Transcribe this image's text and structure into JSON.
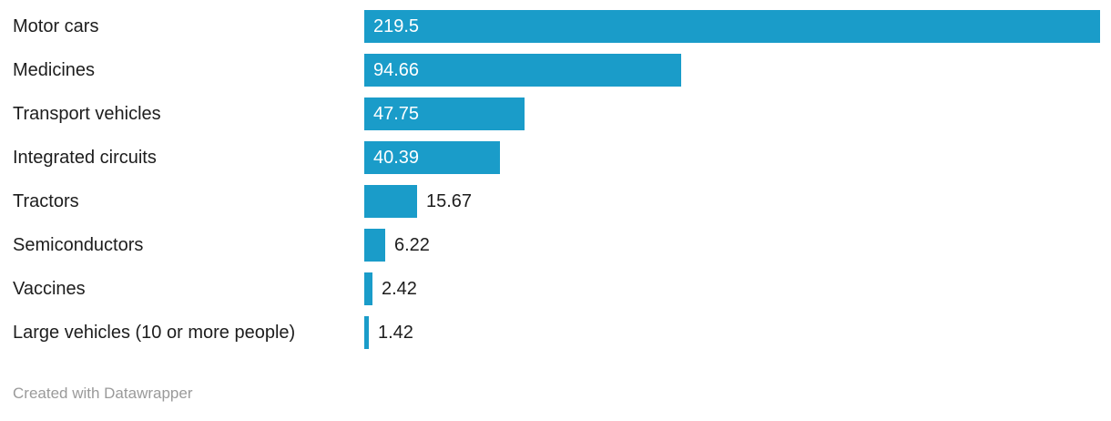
{
  "chart_data": {
    "type": "bar",
    "orientation": "horizontal",
    "title": "",
    "xlabel": "",
    "ylabel": "",
    "xlim": [
      0,
      219.5
    ],
    "grid": false,
    "legend": "none",
    "bar_color": "#1a9cc9",
    "categories": [
      "Motor cars",
      "Medicines",
      "Transport vehicles",
      "Integrated circuits",
      "Tractors",
      "Semiconductors",
      "Vaccines",
      "Large vehicles (10 or more people)"
    ],
    "values": [
      219.5,
      94.66,
      47.75,
      40.39,
      15.67,
      6.22,
      2.42,
      1.42
    ],
    "value_labels": [
      "219.5",
      "94.66",
      "47.75",
      "40.39",
      "15.67",
      "6.22",
      "2.42",
      "1.42"
    ],
    "value_label_positions": [
      "inside",
      "inside",
      "inside",
      "inside",
      "outside",
      "outside",
      "outside",
      "outside"
    ]
  },
  "colors": {
    "bar": "#1a9cc9",
    "category_label": "#1d1d1d",
    "value_inside": "#ffffff",
    "value_outside": "#1d1d1d",
    "footer": "#9a9a9a",
    "background": "#ffffff"
  },
  "footer": {
    "attribution": "Created with Datawrapper"
  }
}
